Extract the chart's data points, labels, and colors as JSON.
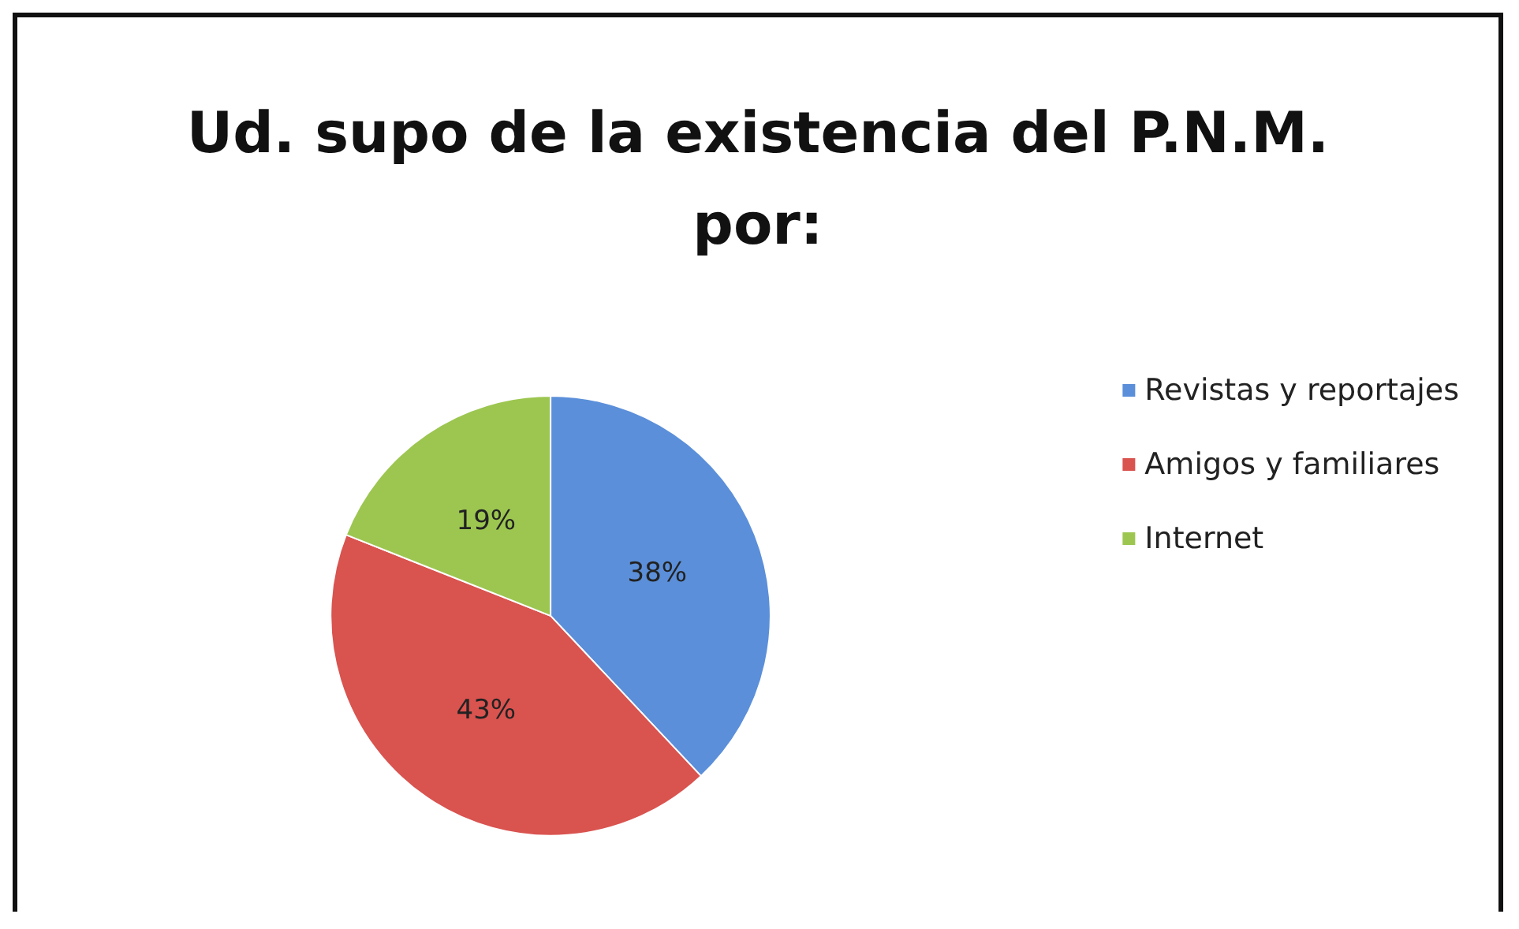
{
  "chart_data": {
    "type": "pie",
    "title": "Ud. supo de la existencia del P.N.M.\npor:",
    "categories": [
      "Revistas y reportajes",
      "Amigos y familiares",
      "Internet"
    ],
    "values": [
      38,
      43,
      19
    ],
    "colors": [
      "#5b8fd9",
      "#d9534f",
      "#9cc650"
    ],
    "value_labels": [
      "38%",
      "43%",
      "19%"
    ],
    "legend": "right"
  }
}
